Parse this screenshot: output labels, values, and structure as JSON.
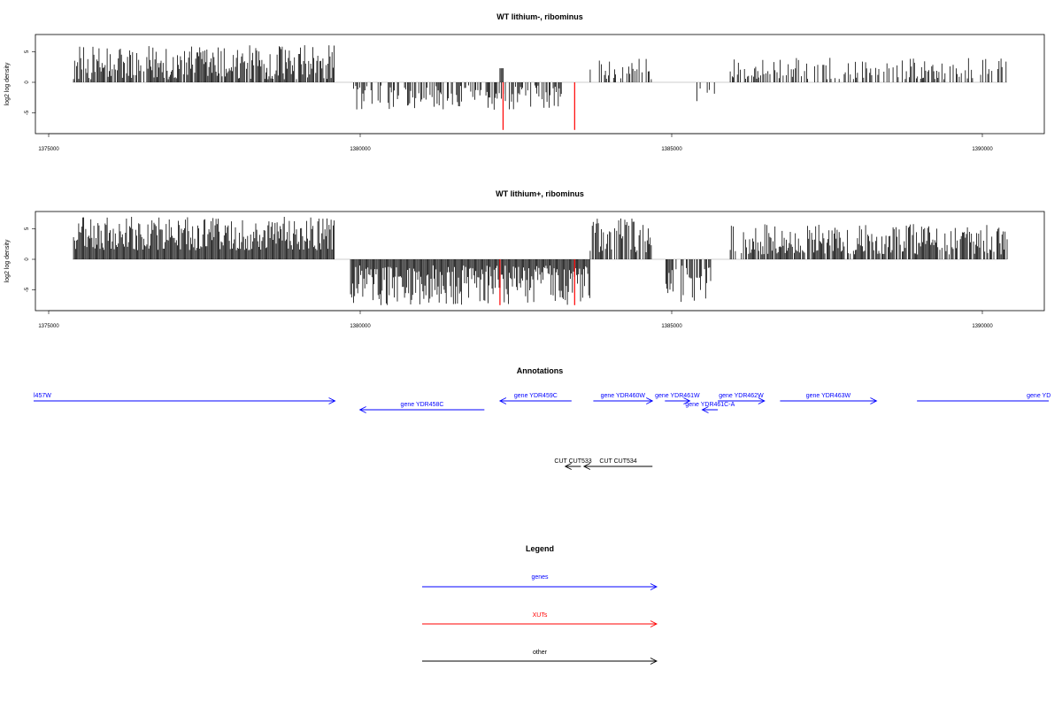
{
  "panels": [
    {
      "title": "WT lithium-, ribominus",
      "ylabel": "log2 log density",
      "yticks": [
        "-5",
        "0",
        "5"
      ],
      "xticks": [
        "1375000",
        "1380000",
        "1385000",
        "1390000"
      ]
    },
    {
      "title": "WT lithium+, ribominus",
      "ylabel": "log2 log density",
      "yticks": [
        "-5",
        "0",
        "5"
      ],
      "xticks": [
        "1375000",
        "1380000",
        "1385000",
        "1390000"
      ]
    }
  ],
  "annotations": {
    "title": "Annotations",
    "genes": [
      {
        "label": "l457W",
        "start": 1374700,
        "end": 1379600,
        "strand": "+"
      },
      {
        "label": "gene YDR458C",
        "start": 1380000,
        "end": 1382000,
        "strand": "-"
      },
      {
        "label": "gene YDR459C",
        "start": 1382250,
        "end": 1383400,
        "strand": "-"
      },
      {
        "label": "gene YDR460W",
        "start": 1383750,
        "end": 1384700,
        "strand": "+"
      },
      {
        "label": "gene YDR461W",
        "start": 1384900,
        "end": 1385300,
        "strand": "+"
      },
      {
        "label": "gene YDR461C-A",
        "start": 1385500,
        "end": 1385750,
        "strand": "-"
      },
      {
        "label": "gene YDR462W",
        "start": 1385750,
        "end": 1386500,
        "strand": "+"
      },
      {
        "label": "gene YDR463W",
        "start": 1386750,
        "end": 1388300,
        "strand": "+"
      },
      {
        "label": "gene YD",
        "start": 1388950,
        "end": 1391500,
        "strand": "+"
      }
    ],
    "other": [
      {
        "label": "CUT CUT533",
        "start": 1383300,
        "end": 1383550,
        "strand": "-"
      },
      {
        "label": "CUT CUT534",
        "start": 1383600,
        "end": 1384700,
        "strand": "-"
      }
    ]
  },
  "legend": {
    "title": "Legend",
    "items": [
      {
        "label": "genes",
        "color": "#0000ff"
      },
      {
        "label": "XUTs",
        "color": "#ff0000"
      },
      {
        "label": "other",
        "color": "#000000"
      }
    ]
  },
  "chart_data": [
    {
      "type": "bar",
      "title": "WT lithium-, ribominus",
      "ylabel": "log2 log density",
      "xlim": [
        1374800,
        1391000
      ],
      "ylim": [
        -8,
        8
      ],
      "y_ticks": [
        -5,
        0,
        5
      ],
      "x_ticks": [
        1375000,
        1380000,
        1385000,
        1390000
      ],
      "tracks": [
        {
          "strand": "+",
          "start": 1375400,
          "end": 1379600,
          "min": 0.5,
          "max": 6.1,
          "density": 0.85
        },
        {
          "strand": "-",
          "start": 1379900,
          "end": 1383300,
          "min": -4.5,
          "max": -0.5,
          "density": 0.6
        },
        {
          "strand": "+",
          "start": 1382250,
          "end": 1382300,
          "min": 2.3,
          "max": 2.3,
          "density": 1.0
        },
        {
          "strand": "+",
          "start": 1383700,
          "end": 1384700,
          "min": 0.5,
          "max": 4.0,
          "density": 0.3
        },
        {
          "strand": "-",
          "start": 1385400,
          "end": 1385700,
          "min": -3.5,
          "max": -1.0,
          "density": 0.35
        },
        {
          "strand": "+",
          "start": 1385950,
          "end": 1390400,
          "min": 0.5,
          "max": 4.0,
          "density": 0.45
        }
      ],
      "highlight_values": [
        {
          "x": 1382300,
          "y": -7.8,
          "color": "#ff0000"
        },
        {
          "x": 1383450,
          "y": -7.8,
          "color": "#ff0000"
        }
      ]
    },
    {
      "type": "bar",
      "title": "WT lithium+, ribominus",
      "ylabel": "log2 log density",
      "xlim": [
        1374800,
        1391000
      ],
      "ylim": [
        -8,
        8
      ],
      "y_ticks": [
        -5,
        0,
        5
      ],
      "x_ticks": [
        1375000,
        1380000,
        1385000,
        1390000
      ],
      "tracks": [
        {
          "strand": "+",
          "start": 1375400,
          "end": 1379600,
          "min": 1.5,
          "max": 7.0,
          "density": 1.0
        },
        {
          "strand": "-",
          "start": 1379850,
          "end": 1383700,
          "min": -7.5,
          "max": -1.0,
          "density": 1.0
        },
        {
          "strand": "+",
          "start": 1383700,
          "end": 1384700,
          "min": 1.0,
          "max": 6.8,
          "density": 0.8
        },
        {
          "strand": "-",
          "start": 1384900,
          "end": 1385700,
          "min": -7.0,
          "max": -1.0,
          "density": 0.7
        },
        {
          "strand": "+",
          "start": 1385950,
          "end": 1390400,
          "min": 0.8,
          "max": 5.8,
          "density": 0.8
        }
      ],
      "highlight_values": [
        {
          "x": 1382250,
          "y": -7.5,
          "color": "#ff0000"
        },
        {
          "x": 1383450,
          "y": -7.5,
          "color": "#ff0000"
        }
      ]
    }
  ]
}
